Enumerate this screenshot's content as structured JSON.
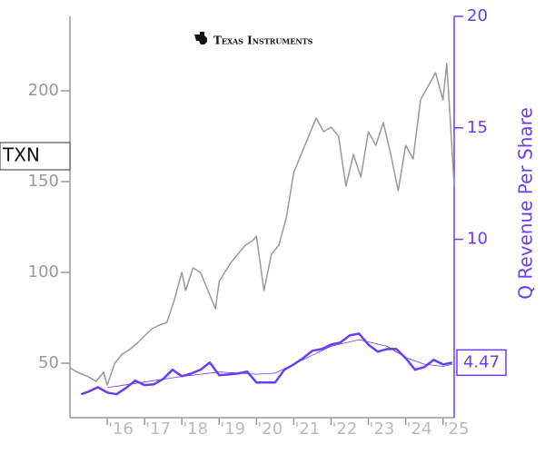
{
  "chart_data": {
    "type": "line",
    "logo": "Texas Instruments",
    "ticker": "TXN",
    "y2label": "Q Revenue Per Share",
    "xlim": [
      2015,
      2025.3
    ],
    "xticks": [
      {
        "value": 2016,
        "label": "'16"
      },
      {
        "value": 2017,
        "label": "'17"
      },
      {
        "value": 2018,
        "label": "'18"
      },
      {
        "value": 2019,
        "label": "'19"
      },
      {
        "value": 2020,
        "label": "'20"
      },
      {
        "value": 2021,
        "label": "'21"
      },
      {
        "value": 2022,
        "label": "'22"
      },
      {
        "value": 2023,
        "label": "'23"
      },
      {
        "value": 2024,
        "label": "'24"
      },
      {
        "value": 2025,
        "label": "'25"
      }
    ],
    "ylim": [
      20,
      241
    ],
    "yticks": [
      50,
      100,
      150,
      200
    ],
    "y2lim": [
      2,
      20
    ],
    "y2ticks": [
      10,
      15,
      20
    ],
    "series": [
      {
        "color": "#999999",
        "x": [
          2015.0,
          2015.2,
          2015.5,
          2015.7,
          2015.9,
          2016.0,
          2016.2,
          2016.4,
          2016.6,
          2016.8,
          2017.0,
          2017.2,
          2017.4,
          2017.6,
          2017.8,
          2018.0,
          2018.1,
          2018.3,
          2018.5,
          2018.7,
          2018.9,
          2019.0,
          2019.3,
          2019.5,
          2019.7,
          2019.9,
          2020.0,
          2020.2,
          2020.4,
          2020.6,
          2020.8,
          2021.0,
          2021.2,
          2021.4,
          2021.6,
          2021.8,
          2022.0,
          2022.2,
          2022.4,
          2022.6,
          2022.8,
          2023.0,
          2023.2,
          2023.4,
          2023.6,
          2023.8,
          2024.0,
          2024.2,
          2024.4,
          2024.6,
          2024.8,
          2025.0,
          2025.1,
          2025.2,
          2025.3
        ],
        "values": [
          47.5,
          45,
          42.5,
          40,
          45,
          38,
          50,
          55,
          57.5,
          61,
          65,
          69,
          71,
          72.5,
          85,
          100,
          90,
          102.5,
          100,
          90,
          80,
          95,
          105,
          110,
          115,
          117.5,
          120,
          90,
          110,
          115,
          130,
          155,
          165,
          175,
          185,
          177.5,
          180,
          175,
          147.5,
          165,
          152.5,
          177.5,
          170,
          182.5,
          165,
          145,
          170,
          162.5,
          195,
          202.5,
          210,
          195,
          215,
          182.5,
          147.5
        ]
      },
      {
        "color": "#6a3df0",
        "axis": "y2",
        "x": [
          2015.3,
          2015.5,
          2015.75,
          2016.0,
          2016.25,
          2016.5,
          2016.75,
          2017.0,
          2017.25,
          2017.5,
          2017.75,
          2018.0,
          2018.25,
          2018.5,
          2018.75,
          2019.0,
          2019.25,
          2019.5,
          2019.75,
          2020.0,
          2020.25,
          2020.5,
          2020.75,
          2021.0,
          2021.25,
          2021.5,
          2021.75,
          2022.0,
          2022.25,
          2022.5,
          2022.75,
          2023.0,
          2023.25,
          2023.5,
          2023.75,
          2024.0,
          2024.25,
          2024.5,
          2024.75,
          2025.0,
          2025.25
        ],
        "values": [
          3.05,
          3.17,
          3.37,
          3.13,
          3.05,
          3.33,
          3.66,
          3.46,
          3.5,
          3.74,
          4.15,
          3.86,
          3.98,
          4.15,
          4.47,
          3.9,
          3.94,
          3.98,
          4.07,
          3.58,
          3.58,
          3.58,
          4.15,
          4.39,
          4.67,
          5.0,
          5.08,
          5.28,
          5.37,
          5.69,
          5.77,
          5.28,
          4.96,
          5.08,
          5.08,
          4.67,
          4.15,
          4.27,
          4.59,
          4.39,
          4.47
        ]
      },
      {
        "color": "#6a3df0",
        "axis": "y2",
        "x": [
          2016.0,
          2017.0,
          2018.0,
          2019.0,
          2020.0,
          2020.5,
          2021.0,
          2021.5,
          2022.0,
          2022.75,
          2023.5,
          2024.0,
          2024.5,
          2025.0,
          2025.25
        ],
        "values": [
          3.35,
          3.6,
          3.85,
          4.05,
          3.95,
          4.0,
          4.4,
          4.8,
          5.2,
          5.5,
          5.2,
          4.7,
          4.4,
          4.3,
          4.4
        ]
      }
    ]
  }
}
